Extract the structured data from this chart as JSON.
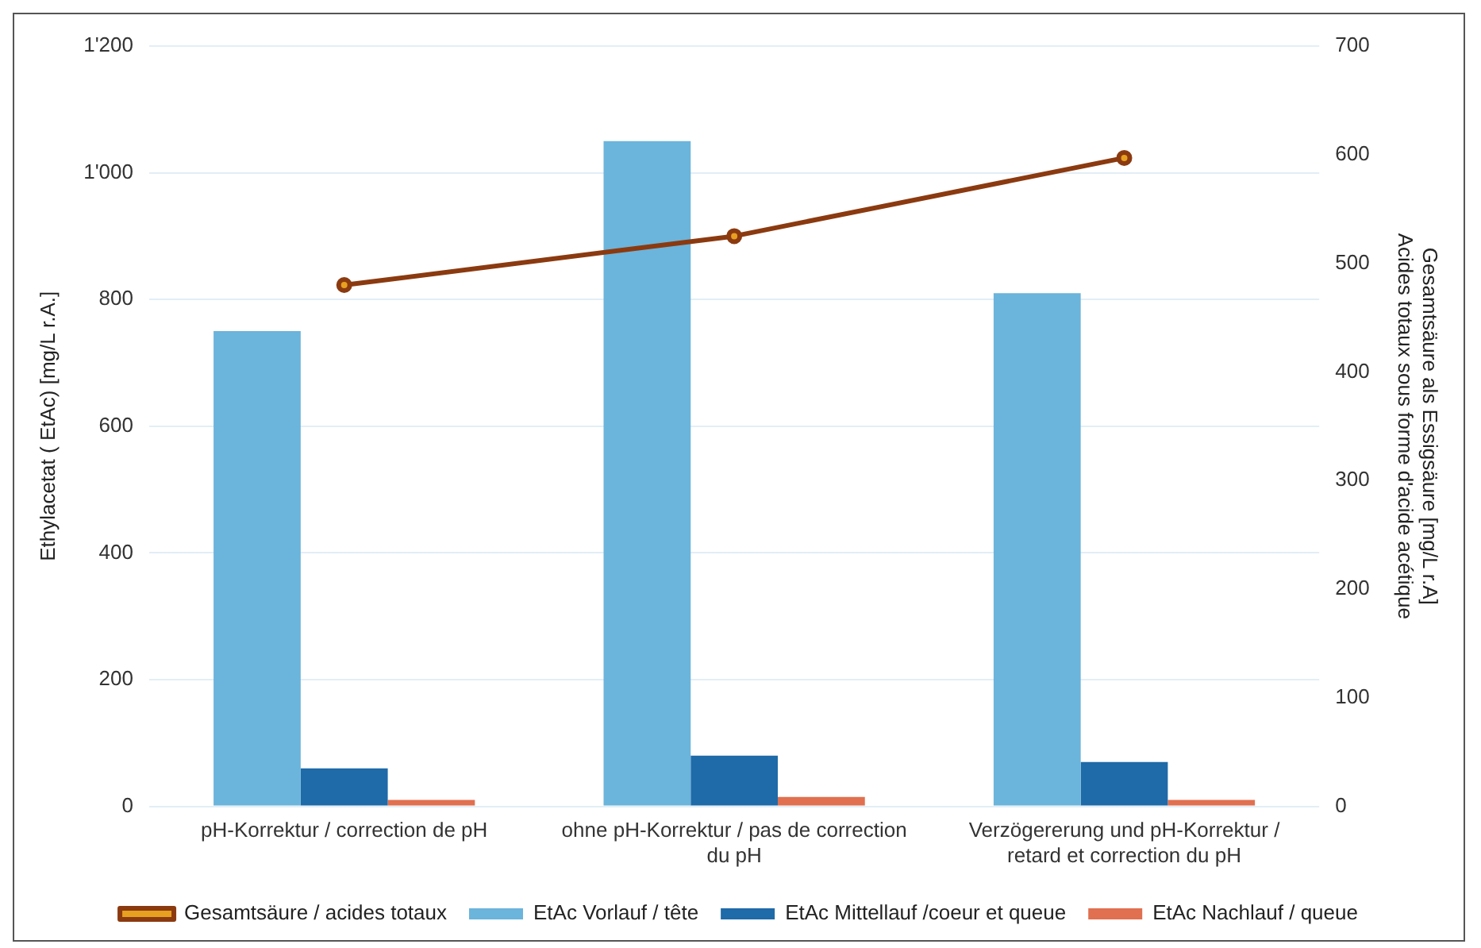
{
  "chart_data": {
    "type": "bar",
    "categories": [
      "pH-Korrektur / correction de pH",
      "ohne pH-Korrektur / pas de correction du pH",
      "Verzögererung und pH-Korrektur / retard et correction du pH"
    ],
    "ylabel": "Ethylacetat ( EtAc) [mg/L r.A.]",
    "y2label": "Gesamtsäure als Essigsäure [mg/L r.A]\nAcides totaux sous forme d'acide acétique",
    "ylim": [
      0,
      1200
    ],
    "yticks": [
      0,
      200,
      400,
      600,
      800,
      {
        "value": 1000,
        "label": "1'000"
      },
      {
        "value": 1200,
        "label": "1'200"
      }
    ],
    "y2lim": [
      0,
      700
    ],
    "y2ticks": [
      0,
      100,
      200,
      300,
      400,
      500,
      600,
      700
    ],
    "series": [
      {
        "name": "EtAc Vorlauf / tête",
        "color": "#6bb4db",
        "values": [
          750,
          1050,
          810
        ]
      },
      {
        "name": "EtAc Mittellauf /coeur et queue",
        "color": "#1f6aa8",
        "values": [
          60,
          80,
          70
        ]
      },
      {
        "name": "EtAc Nachlauf / queue",
        "color": "#e07050",
        "values": [
          10,
          15,
          10
        ]
      },
      {
        "name": "Gesamtsäure / acides totaux",
        "type": "line",
        "axis": "y2",
        "color": "#8b3a10",
        "values": [
          480,
          525,
          597
        ]
      }
    ],
    "grid": "y",
    "legend": "bottom",
    "marker": "circle",
    "line_style": "solid"
  }
}
